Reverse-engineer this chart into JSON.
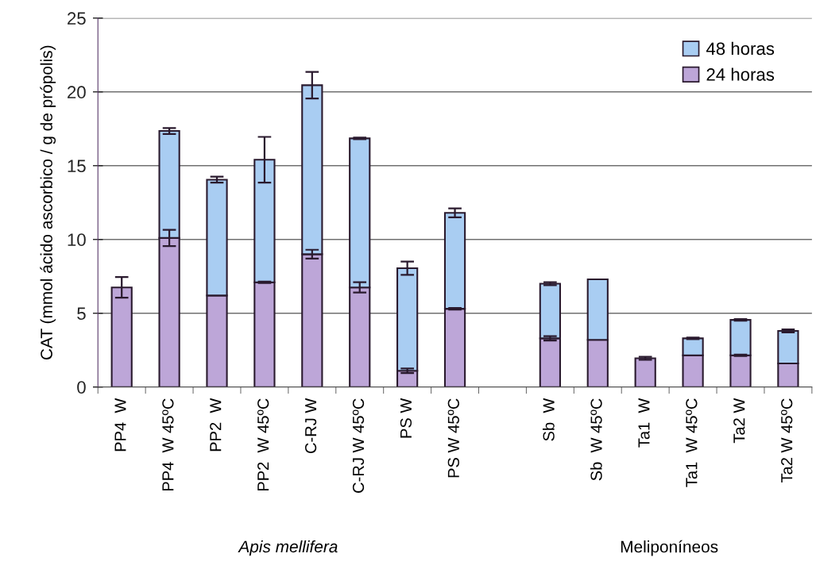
{
  "chart_data": {
    "type": "bar",
    "stacked": true,
    "ylabel": "CAT (mmol ácido ascorbico / g de própolis)",
    "categories": [
      "PP4  W",
      "PP4  W 45ºC",
      "PP2  W",
      "PP2  W 45ºC",
      "C-RJ W",
      "C-RJ W 45ºC",
      "PS W",
      "PS W 45ºC",
      null,
      "Sb  W",
      "Sb  W 45ºC",
      "Ta1  W",
      "Ta1  W 45ºC",
      "Ta2 W",
      "Ta2 W 45ºC"
    ],
    "series": [
      {
        "name": "24 horas",
        "color": "#bda6d8",
        "values": [
          6.75,
          10.1,
          6.2,
          7.1,
          9.0,
          6.75,
          1.1,
          5.3,
          null,
          3.3,
          3.2,
          1.95,
          2.15,
          2.15,
          1.6
        ],
        "errors": [
          0.7,
          0.55,
          null,
          0.05,
          0.3,
          0.35,
          0.15,
          0.05,
          null,
          0.15,
          null,
          0.1,
          null,
          0.05,
          null
        ]
      },
      {
        "name": "48 horas",
        "color": "#a9cdf2",
        "values": [
          null,
          7.25,
          7.85,
          8.3,
          11.45,
          10.1,
          6.95,
          6.5,
          null,
          3.7,
          4.1,
          null,
          1.15,
          2.4,
          2.2
        ],
        "errors": [
          null,
          0.2,
          0.2,
          1.55,
          0.9,
          0.05,
          0.45,
          0.3,
          null,
          0.1,
          null,
          null,
          0.05,
          0.05,
          0.1
        ]
      }
    ],
    "ylim": [
      0,
      25
    ],
    "yticks": [
      0,
      5,
      10,
      15,
      20,
      25
    ],
    "grid": "y",
    "legend": "top right",
    "annotations": [
      "Apis mellifera",
      "Meliponíneos"
    ]
  }
}
